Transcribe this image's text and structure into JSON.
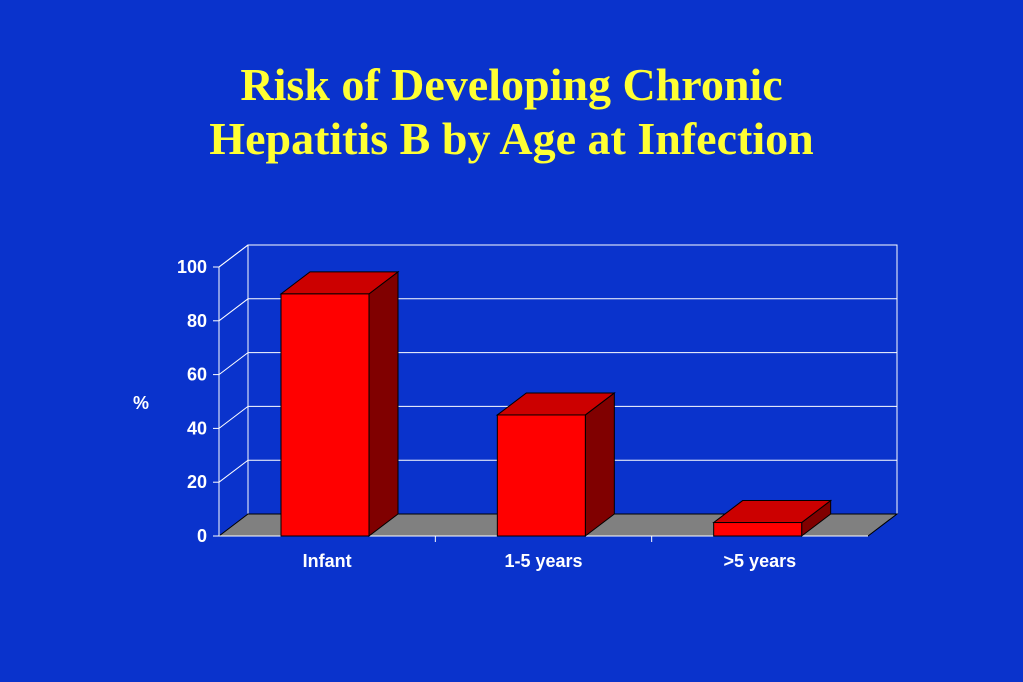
{
  "title_line1": "Risk of Developing Chronic",
  "title_line2": "Hepatitis B by Age at Infection",
  "colors": {
    "background": "#0a33cc",
    "title": "#ffff33",
    "bar_front": "#ff0000",
    "bar_top": "#cc0000",
    "bar_side": "#800000",
    "floor": "#808080",
    "grid": "#ffffff",
    "text": "#ffffff"
  },
  "chart_data": {
    "type": "bar",
    "title": "Risk of Developing Chronic Hepatitis B by Age at Infection",
    "categories": [
      "Infant",
      "1-5 years",
      ">5 years"
    ],
    "values": [
      90,
      45,
      5
    ],
    "ylabel": "%",
    "xlabel": "",
    "ylim": [
      0,
      100
    ],
    "yticks": [
      0,
      20,
      40,
      60,
      80,
      100
    ],
    "grid": true,
    "style": "3d"
  }
}
